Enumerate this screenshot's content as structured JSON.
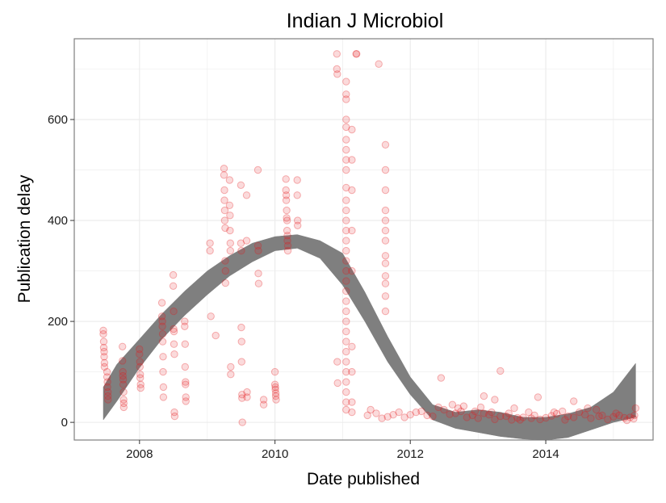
{
  "chart_data": {
    "type": "scatter",
    "title": "Indian J Microbiol",
    "xlabel": "Date published",
    "ylabel": "Publication delay",
    "x_axis": {
      "type": "date",
      "range": [
        "2007-01-14",
        "2015-08-03"
      ],
      "ticks": [
        "2008",
        "2010",
        "2012",
        "2014"
      ]
    },
    "y_axis": {
      "range": [
        -35,
        760
      ],
      "ticks": [
        0,
        200,
        400,
        600
      ]
    },
    "grid": true,
    "legend": "none",
    "colors": {
      "points": "#e41a1c",
      "band": "#7f7f7f",
      "grid": "#ebebeb",
      "panel_border": "#7f7f7f"
    },
    "points": [
      {
        "x": "2007-06-20",
        "y": 182
      },
      {
        "x": "2007-06-20",
        "y": 175
      },
      {
        "x": "2007-06-22",
        "y": 160
      },
      {
        "x": "2007-06-22",
        "y": 148
      },
      {
        "x": "2007-06-24",
        "y": 140
      },
      {
        "x": "2007-06-24",
        "y": 130
      },
      {
        "x": "2007-06-26",
        "y": 118
      },
      {
        "x": "2007-06-26",
        "y": 110
      },
      {
        "x": "2007-07-10",
        "y": 100
      },
      {
        "x": "2007-07-10",
        "y": 90
      },
      {
        "x": "2007-07-12",
        "y": 80
      },
      {
        "x": "2007-07-12",
        "y": 70
      },
      {
        "x": "2007-07-14",
        "y": 60
      },
      {
        "x": "2007-07-14",
        "y": 52
      },
      {
        "x": "2007-07-15",
        "y": 45
      },
      {
        "x": "2007-10-01",
        "y": 150
      },
      {
        "x": "2007-10-01",
        "y": 122
      },
      {
        "x": "2007-10-03",
        "y": 100
      },
      {
        "x": "2007-10-03",
        "y": 92
      },
      {
        "x": "2007-10-05",
        "y": 85
      },
      {
        "x": "2007-10-05",
        "y": 75
      },
      {
        "x": "2007-10-07",
        "y": 60
      },
      {
        "x": "2007-10-07",
        "y": 45
      },
      {
        "x": "2007-10-08",
        "y": 38
      },
      {
        "x": "2007-10-08",
        "y": 30
      },
      {
        "x": "2008-01-01",
        "y": 145
      },
      {
        "x": "2008-01-01",
        "y": 135
      },
      {
        "x": "2008-01-03",
        "y": 120
      },
      {
        "x": "2008-01-03",
        "y": 110
      },
      {
        "x": "2008-01-05",
        "y": 95
      },
      {
        "x": "2008-01-05",
        "y": 88
      },
      {
        "x": "2008-01-07",
        "y": 75
      },
      {
        "x": "2008-01-07",
        "y": 68
      },
      {
        "x": "2008-05-01",
        "y": 237
      },
      {
        "x": "2008-05-01",
        "y": 210
      },
      {
        "x": "2008-05-03",
        "y": 200
      },
      {
        "x": "2008-05-03",
        "y": 190
      },
      {
        "x": "2008-05-05",
        "y": 175
      },
      {
        "x": "2008-05-05",
        "y": 160
      },
      {
        "x": "2008-05-07",
        "y": 130
      },
      {
        "x": "2008-05-07",
        "y": 100
      },
      {
        "x": "2008-05-09",
        "y": 70
      },
      {
        "x": "2008-05-09",
        "y": 50
      },
      {
        "x": "2008-07-01",
        "y": 292
      },
      {
        "x": "2008-07-01",
        "y": 270
      },
      {
        "x": "2008-07-03",
        "y": 220
      },
      {
        "x": "2008-07-03",
        "y": 185
      },
      {
        "x": "2008-07-05",
        "y": 180
      },
      {
        "x": "2008-07-05",
        "y": 155
      },
      {
        "x": "2008-07-07",
        "y": 135
      },
      {
        "x": "2008-07-07",
        "y": 20
      },
      {
        "x": "2008-07-09",
        "y": 12
      },
      {
        "x": "2008-09-01",
        "y": 200
      },
      {
        "x": "2008-09-01",
        "y": 190
      },
      {
        "x": "2008-09-03",
        "y": 155
      },
      {
        "x": "2008-09-03",
        "y": 110
      },
      {
        "x": "2008-09-05",
        "y": 80
      },
      {
        "x": "2008-09-05",
        "y": 75
      },
      {
        "x": "2008-09-07",
        "y": 50
      },
      {
        "x": "2008-09-07",
        "y": 42
      },
      {
        "x": "2009-01-15",
        "y": 355
      },
      {
        "x": "2009-01-15",
        "y": 340
      },
      {
        "x": "2009-01-20",
        "y": 210
      },
      {
        "x": "2009-02-15",
        "y": 172
      },
      {
        "x": "2009-04-01",
        "y": 503
      },
      {
        "x": "2009-04-01",
        "y": 490
      },
      {
        "x": "2009-04-03",
        "y": 460
      },
      {
        "x": "2009-04-03",
        "y": 440
      },
      {
        "x": "2009-04-05",
        "y": 420
      },
      {
        "x": "2009-04-05",
        "y": 400
      },
      {
        "x": "2009-04-07",
        "y": 385
      },
      {
        "x": "2009-04-07",
        "y": 320
      },
      {
        "x": "2009-04-09",
        "y": 300
      },
      {
        "x": "2009-04-09",
        "y": 276
      },
      {
        "x": "2009-05-01",
        "y": 480
      },
      {
        "x": "2009-05-01",
        "y": 430
      },
      {
        "x": "2009-05-03",
        "y": 410
      },
      {
        "x": "2009-05-03",
        "y": 380
      },
      {
        "x": "2009-05-05",
        "y": 355
      },
      {
        "x": "2009-05-05",
        "y": 340
      },
      {
        "x": "2009-05-07",
        "y": 110
      },
      {
        "x": "2009-05-07",
        "y": 95
      },
      {
        "x": "2009-07-01",
        "y": 470
      },
      {
        "x": "2009-07-01",
        "y": 355
      },
      {
        "x": "2009-07-03",
        "y": 340
      },
      {
        "x": "2009-07-03",
        "y": 188
      },
      {
        "x": "2009-07-05",
        "y": 160
      },
      {
        "x": "2009-07-05",
        "y": 120
      },
      {
        "x": "2009-07-07",
        "y": 55
      },
      {
        "x": "2009-07-07",
        "y": 48
      },
      {
        "x": "2009-07-09",
        "y": 0
      },
      {
        "x": "2009-08-01",
        "y": 450
      },
      {
        "x": "2009-08-01",
        "y": 360
      },
      {
        "x": "2009-08-03",
        "y": 60
      },
      {
        "x": "2009-08-03",
        "y": 50
      },
      {
        "x": "2009-10-01",
        "y": 500
      },
      {
        "x": "2009-10-01",
        "y": 350
      },
      {
        "x": "2009-10-03",
        "y": 340
      },
      {
        "x": "2009-10-03",
        "y": 295
      },
      {
        "x": "2009-10-05",
        "y": 275
      },
      {
        "x": "2009-11-01",
        "y": 45
      },
      {
        "x": "2009-11-01",
        "y": 35
      },
      {
        "x": "2010-01-01",
        "y": 100
      },
      {
        "x": "2010-01-01",
        "y": 75
      },
      {
        "x": "2010-01-03",
        "y": 70
      },
      {
        "x": "2010-01-03",
        "y": 65
      },
      {
        "x": "2010-01-05",
        "y": 58
      },
      {
        "x": "2010-01-05",
        "y": 52
      },
      {
        "x": "2010-01-07",
        "y": 45
      },
      {
        "x": "2010-03-01",
        "y": 482
      },
      {
        "x": "2010-03-01",
        "y": 460
      },
      {
        "x": "2010-03-03",
        "y": 450
      },
      {
        "x": "2010-03-03",
        "y": 440
      },
      {
        "x": "2010-03-05",
        "y": 420
      },
      {
        "x": "2010-03-05",
        "y": 405
      },
      {
        "x": "2010-03-07",
        "y": 400
      },
      {
        "x": "2010-03-07",
        "y": 380
      },
      {
        "x": "2010-03-09",
        "y": 370
      },
      {
        "x": "2010-03-09",
        "y": 360
      },
      {
        "x": "2010-03-11",
        "y": 350
      },
      {
        "x": "2010-03-11",
        "y": 340
      },
      {
        "x": "2010-05-01",
        "y": 480
      },
      {
        "x": "2010-05-01",
        "y": 450
      },
      {
        "x": "2010-05-03",
        "y": 400
      },
      {
        "x": "2010-05-03",
        "y": 390
      },
      {
        "x": "2010-12-01",
        "y": 730
      },
      {
        "x": "2010-12-01",
        "y": 700
      },
      {
        "x": "2010-12-03",
        "y": 690
      },
      {
        "x": "2010-12-03",
        "y": 120
      },
      {
        "x": "2010-12-05",
        "y": 78
      },
      {
        "x": "2011-03-15",
        "y": 730
      },
      {
        "x": "2011-03-17",
        "y": 730
      },
      {
        "x": "2011-07-15",
        "y": 710
      },
      {
        "x": "2011-01-20",
        "y": 675
      },
      {
        "x": "2011-01-20",
        "y": 650
      },
      {
        "x": "2011-01-20",
        "y": 640
      },
      {
        "x": "2011-01-20",
        "y": 600
      },
      {
        "x": "2011-01-20",
        "y": 585
      },
      {
        "x": "2011-01-20",
        "y": 560
      },
      {
        "x": "2011-01-20",
        "y": 540
      },
      {
        "x": "2011-01-20",
        "y": 520
      },
      {
        "x": "2011-01-20",
        "y": 500
      },
      {
        "x": "2011-01-20",
        "y": 465
      },
      {
        "x": "2011-01-20",
        "y": 440
      },
      {
        "x": "2011-01-20",
        "y": 420
      },
      {
        "x": "2011-01-20",
        "y": 400
      },
      {
        "x": "2011-01-20",
        "y": 380
      },
      {
        "x": "2011-01-20",
        "y": 360
      },
      {
        "x": "2011-01-20",
        "y": 340
      },
      {
        "x": "2011-01-20",
        "y": 320
      },
      {
        "x": "2011-01-20",
        "y": 300
      },
      {
        "x": "2011-01-20",
        "y": 280
      },
      {
        "x": "2011-01-20",
        "y": 260
      },
      {
        "x": "2011-01-20",
        "y": 240
      },
      {
        "x": "2011-01-20",
        "y": 220
      },
      {
        "x": "2011-01-20",
        "y": 200
      },
      {
        "x": "2011-01-20",
        "y": 180
      },
      {
        "x": "2011-01-20",
        "y": 160
      },
      {
        "x": "2011-01-20",
        "y": 140
      },
      {
        "x": "2011-01-20",
        "y": 120
      },
      {
        "x": "2011-01-20",
        "y": 100
      },
      {
        "x": "2011-01-20",
        "y": 80
      },
      {
        "x": "2011-01-20",
        "y": 60
      },
      {
        "x": "2011-01-20",
        "y": 40
      },
      {
        "x": "2011-01-20",
        "y": 25
      },
      {
        "x": "2011-02-20",
        "y": 580
      },
      {
        "x": "2011-02-20",
        "y": 520
      },
      {
        "x": "2011-02-20",
        "y": 460
      },
      {
        "x": "2011-02-20",
        "y": 380
      },
      {
        "x": "2011-02-20",
        "y": 300
      },
      {
        "x": "2011-02-20",
        "y": 150
      },
      {
        "x": "2011-02-20",
        "y": 100
      },
      {
        "x": "2011-02-20",
        "y": 40
      },
      {
        "x": "2011-02-20",
        "y": 20
      },
      {
        "x": "2011-08-20",
        "y": 550
      },
      {
        "x": "2011-08-20",
        "y": 500
      },
      {
        "x": "2011-08-20",
        "y": 460
      },
      {
        "x": "2011-08-20",
        "y": 420
      },
      {
        "x": "2011-08-20",
        "y": 400
      },
      {
        "x": "2011-08-20",
        "y": 380
      },
      {
        "x": "2011-08-20",
        "y": 360
      },
      {
        "x": "2011-08-20",
        "y": 330
      },
      {
        "x": "2011-08-20",
        "y": 315
      },
      {
        "x": "2011-08-20",
        "y": 290
      },
      {
        "x": "2011-08-20",
        "y": 275
      },
      {
        "x": "2011-08-20",
        "y": 250
      },
      {
        "x": "2011-08-20",
        "y": 220
      },
      {
        "x": "2012-06-15",
        "y": 88
      },
      {
        "x": "2013-05-01",
        "y": 102
      },
      {
        "x": "2013-02-01",
        "y": 52
      },
      {
        "x": "2013-04-01",
        "y": 45
      },
      {
        "x": "2013-07-15",
        "y": 28
      },
      {
        "x": "2013-11-20",
        "y": 50
      },
      {
        "x": "2014-06-01",
        "y": 42
      },
      {
        "x": "2015-05-01",
        "y": 28
      },
      {
        "x": "2011-05-15",
        "y": 14
      },
      {
        "x": "2011-07-01",
        "y": 18
      },
      {
        "x": "2011-09-01",
        "y": 11
      },
      {
        "x": "2011-11-01",
        "y": 20
      },
      {
        "x": "2012-01-01",
        "y": 15
      },
      {
        "x": "2012-03-01",
        "y": 22
      },
      {
        "x": "2012-05-01",
        "y": 12
      },
      {
        "x": "2012-07-01",
        "y": 25
      },
      {
        "x": "2012-09-01",
        "y": 18
      },
      {
        "x": "2012-11-01",
        "y": 10
      },
      {
        "x": "2013-01-01",
        "y": 8
      },
      {
        "x": "2013-03-01",
        "y": 15
      },
      {
        "x": "2013-05-01",
        "y": 12
      },
      {
        "x": "2013-07-01",
        "y": 5
      },
      {
        "x": "2013-09-01",
        "y": 10
      },
      {
        "x": "2013-11-01",
        "y": 14
      },
      {
        "x": "2014-01-01",
        "y": 9
      },
      {
        "x": "2014-03-01",
        "y": 17
      },
      {
        "x": "2014-05-01",
        "y": 12
      },
      {
        "x": "2014-07-01",
        "y": 20
      },
      {
        "x": "2014-09-01",
        "y": 8
      },
      {
        "x": "2014-11-01",
        "y": 14
      },
      {
        "x": "2015-01-01",
        "y": 11
      },
      {
        "x": "2015-03-01",
        "y": 9
      },
      {
        "x": "2015-04-20",
        "y": 7
      },
      {
        "x": "2011-06-01",
        "y": 25
      },
      {
        "x": "2011-08-01",
        "y": 8
      },
      {
        "x": "2011-10-01",
        "y": 15
      },
      {
        "x": "2011-12-01",
        "y": 10
      },
      {
        "x": "2012-02-01",
        "y": 20
      },
      {
        "x": "2012-04-01",
        "y": 14
      },
      {
        "x": "2012-06-01",
        "y": 30
      },
      {
        "x": "2012-08-01",
        "y": 16
      },
      {
        "x": "2012-10-01",
        "y": 22
      },
      {
        "x": "2012-12-01",
        "y": 14
      },
      {
        "x": "2013-02-01",
        "y": 18
      },
      {
        "x": "2013-04-01",
        "y": 6
      },
      {
        "x": "2013-06-01",
        "y": 12
      },
      {
        "x": "2013-08-01",
        "y": 9
      },
      {
        "x": "2013-10-01",
        "y": 20
      },
      {
        "x": "2013-12-01",
        "y": 6
      },
      {
        "x": "2014-02-01",
        "y": 13
      },
      {
        "x": "2014-04-01",
        "y": 22
      },
      {
        "x": "2014-06-01",
        "y": 10
      },
      {
        "x": "2014-08-01",
        "y": 15
      },
      {
        "x": "2014-10-01",
        "y": 25
      },
      {
        "x": "2014-12-01",
        "y": 6
      },
      {
        "x": "2015-02-01",
        "y": 14
      },
      {
        "x": "2015-04-01",
        "y": 10
      },
      {
        "x": "2012-08-15",
        "y": 35
      },
      {
        "x": "2012-09-15",
        "y": 28
      },
      {
        "x": "2012-10-15",
        "y": 32
      },
      {
        "x": "2012-12-15",
        "y": 22
      },
      {
        "x": "2013-01-15",
        "y": 30
      },
      {
        "x": "2013-03-15",
        "y": 20
      },
      {
        "x": "2013-06-15",
        "y": 18
      },
      {
        "x": "2013-08-15",
        "y": 5
      },
      {
        "x": "2013-10-15",
        "y": 8
      },
      {
        "x": "2014-02-15",
        "y": 20
      },
      {
        "x": "2014-04-15",
        "y": 5
      },
      {
        "x": "2014-08-15",
        "y": 28
      },
      {
        "x": "2014-10-15",
        "y": 12
      },
      {
        "x": "2015-01-15",
        "y": 18
      },
      {
        "x": "2015-03-15",
        "y": 4
      },
      {
        "x": "2015-04-25",
        "y": 14
      }
    ],
    "smooth_band": {
      "x": [
        "2007-06-20",
        "2007-09-01",
        "2008-01-01",
        "2008-05-01",
        "2008-09-01",
        "2009-01-01",
        "2009-05-01",
        "2009-09-01",
        "2010-01-01",
        "2010-05-01",
        "2010-09-01",
        "2011-01-01",
        "2011-05-01",
        "2011-09-01",
        "2012-01-01",
        "2012-05-01",
        "2012-09-01",
        "2013-01-01",
        "2013-05-01",
        "2013-09-01",
        "2014-01-01",
        "2014-05-01",
        "2014-09-01",
        "2015-01-01",
        "2015-05-01"
      ],
      "upper": [
        70,
        115,
        165,
        215,
        260,
        300,
        330,
        355,
        368,
        372,
        360,
        335,
        258,
        170,
        90,
        35,
        20,
        25,
        20,
        10,
        10,
        17,
        30,
        60,
        117
      ],
      "lower": [
        5,
        42,
        108,
        165,
        212,
        253,
        290,
        318,
        340,
        345,
        325,
        272,
        200,
        120,
        55,
        5,
        -12,
        -20,
        -28,
        -33,
        -35,
        -30,
        -15,
        0,
        10
      ]
    }
  }
}
